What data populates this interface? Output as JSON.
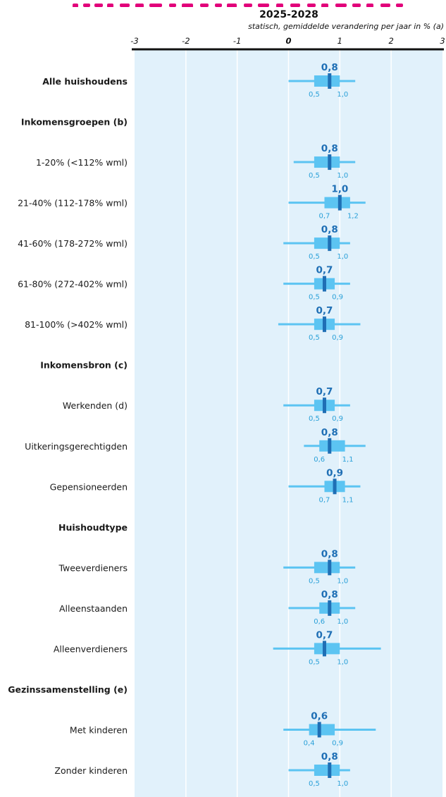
{
  "chart_data": {
    "type": "box",
    "title": "2025-2028",
    "subtitle": "statisch, gemiddelde verandering per jaar in % (a)",
    "xlim": [
      -3,
      3
    ],
    "xticks": [
      "-3",
      "-2",
      "-1",
      "0",
      "1",
      "2",
      "3"
    ],
    "grid": true,
    "colors": {
      "background": "#e1f1fb",
      "whisker": "#5cc4f2",
      "box": "#5cc4f2",
      "median": "#1f6fb5",
      "median_label": "#1f6fb5",
      "bound_label": "#2aa0d8",
      "axis": "#111111",
      "gridline": "#ffffff",
      "title_strip": "#e2007a"
    },
    "rows": [
      {
        "label": "Alle huishoudens",
        "header": true,
        "median": 0.8,
        "median_label": "0,8",
        "box": [
          0.5,
          1.0
        ],
        "box_labels": [
          "0,5",
          "1,0"
        ],
        "whisker": [
          0.0,
          1.3
        ]
      },
      {
        "label": "Inkomensgroepen (b)",
        "header": true
      },
      {
        "label": "1-20% (<112% wml)",
        "median": 0.8,
        "median_label": "0,8",
        "box": [
          0.5,
          1.0
        ],
        "box_labels": [
          "0,5",
          "1,0"
        ],
        "whisker": [
          0.1,
          1.3
        ]
      },
      {
        "label": "21-40% (112-178% wml)",
        "median": 1.0,
        "median_label": "1,0",
        "box": [
          0.7,
          1.2
        ],
        "box_labels": [
          "0,7",
          "1,2"
        ],
        "whisker": [
          0.0,
          1.5
        ]
      },
      {
        "label": "41-60% (178-272% wml)",
        "median": 0.8,
        "median_label": "0,8",
        "box": [
          0.5,
          1.0
        ],
        "box_labels": [
          "0,5",
          "1,0"
        ],
        "whisker": [
          -0.1,
          1.2
        ]
      },
      {
        "label": "61-80% (272-402% wml)",
        "median": 0.7,
        "median_label": "0,7",
        "box": [
          0.5,
          0.9
        ],
        "box_labels": [
          "0,5",
          "0,9"
        ],
        "whisker": [
          -0.1,
          1.2
        ]
      },
      {
        "label": "81-100% (>402% wml)",
        "median": 0.7,
        "median_label": "0,7",
        "box": [
          0.5,
          0.9
        ],
        "box_labels": [
          "0,5",
          "0,9"
        ],
        "whisker": [
          -0.2,
          1.4
        ]
      },
      {
        "label": "Inkomensbron (c)",
        "header": true
      },
      {
        "label": "Werkenden (d)",
        "median": 0.7,
        "median_label": "0,7",
        "box": [
          0.5,
          0.9
        ],
        "box_labels": [
          "0,5",
          "0,9"
        ],
        "whisker": [
          -0.1,
          1.2
        ]
      },
      {
        "label": "Uitkeringsgerechtigden",
        "median": 0.8,
        "median_label": "0,8",
        "box": [
          0.6,
          1.1
        ],
        "box_labels": [
          "0,6",
          "1,1"
        ],
        "whisker": [
          0.3,
          1.5
        ]
      },
      {
        "label": "Gepensioneerden",
        "median": 0.9,
        "median_label": "0,9",
        "box": [
          0.7,
          1.1
        ],
        "box_labels": [
          "0,7",
          "1,1"
        ],
        "whisker": [
          0.0,
          1.4
        ]
      },
      {
        "label": "Huishoudtype",
        "header": true
      },
      {
        "label": "Tweeverdieners",
        "median": 0.8,
        "median_label": "0,8",
        "box": [
          0.5,
          1.0
        ],
        "box_labels": [
          "0,5",
          "1,0"
        ],
        "whisker": [
          -0.1,
          1.3
        ]
      },
      {
        "label": "Alleenstaanden",
        "median": 0.8,
        "median_label": "0,8",
        "box": [
          0.6,
          1.0
        ],
        "box_labels": [
          "0,6",
          "1,0"
        ],
        "whisker": [
          0.0,
          1.3
        ]
      },
      {
        "label": "Alleenverdieners",
        "median": 0.7,
        "median_label": "0,7",
        "box": [
          0.5,
          1.0
        ],
        "box_labels": [
          "0,5",
          "1,0"
        ],
        "whisker": [
          -0.3,
          1.8
        ]
      },
      {
        "label": "Gezinssamenstelling (e)",
        "header": true
      },
      {
        "label": "Met kinderen",
        "median": 0.6,
        "median_label": "0,6",
        "box": [
          0.4,
          0.9
        ],
        "box_labels": [
          "0,4",
          "0,9"
        ],
        "whisker": [
          -0.1,
          1.7
        ]
      },
      {
        "label": "Zonder kinderen",
        "median": 0.8,
        "median_label": "0,8",
        "box": [
          0.5,
          1.0
        ],
        "box_labels": [
          "0,5",
          "1,0"
        ],
        "whisker": [
          0.0,
          1.2
        ]
      }
    ]
  }
}
